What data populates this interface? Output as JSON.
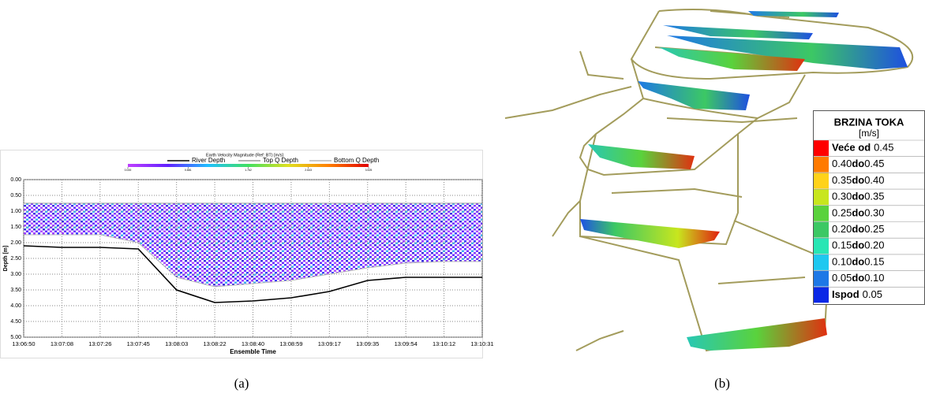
{
  "panel_a": {
    "chart_data": {
      "type": "line",
      "title": "Earth Velocity Magnitude (Ref: BT) [m/s]",
      "x_label": "Ensemble Time",
      "y_label": "Depth [m]",
      "categories": [
        "13:06:50",
        "13:07:08",
        "13:07:26",
        "13:07:45",
        "13:08:03",
        "13:08:22",
        "13:08:40",
        "13:08:59",
        "13:09:17",
        "13:09:35",
        "13:09:54",
        "13:10:12",
        "13:10:31"
      ],
      "series": [
        {
          "name": "River Depth",
          "color": "#000000",
          "values": [
            2.1,
            2.15,
            2.15,
            2.2,
            3.5,
            3.9,
            3.85,
            3.75,
            3.55,
            3.2,
            3.1,
            3.1,
            3.1
          ]
        },
        {
          "name": "Top Q Depth",
          "color": "#9a9a9a",
          "values": [
            0.75,
            0.75,
            0.75,
            0.75,
            0.75,
            0.75,
            0.75,
            0.75,
            0.75,
            0.75,
            0.75,
            0.75,
            0.75
          ]
        },
        {
          "name": "Bottom Q Depth",
          "color": "#b8b8b8",
          "values": [
            1.75,
            1.75,
            1.75,
            2.0,
            3.1,
            3.4,
            3.3,
            3.2,
            3.0,
            2.8,
            2.65,
            2.6,
            2.6
          ]
        }
      ],
      "ylim": [
        0,
        5
      ],
      "y_reversed": true,
      "yticks": [
        {
          "value": 0,
          "label": "0.00"
        },
        {
          "value": 0.5,
          "label": "0.50"
        },
        {
          "value": 1,
          "label": "1.00"
        },
        {
          "value": 1.5,
          "label": "1.50"
        },
        {
          "value": 2,
          "label": "2.00"
        },
        {
          "value": 2.5,
          "label": "2.50"
        },
        {
          "value": 3,
          "label": "3.00"
        },
        {
          "value": 3.5,
          "label": "3.50"
        },
        {
          "value": 4,
          "label": "4.00"
        },
        {
          "value": 4.5,
          "label": "4.50"
        },
        {
          "value": 5,
          "label": "5.00"
        }
      ],
      "grid": true,
      "colorbar": {
        "colors": [
          "#c040ff",
          "#6020ff",
          "#20c0ff",
          "#40e060",
          "#e0e020",
          "#ff8000",
          "#e00000"
        ],
        "ticks": [
          {
            "value": 0,
            "label": "0.000"
          },
          {
            "value": 0.881,
            "label": "0.881"
          },
          {
            "value": 1.762,
            "label": "1.762"
          },
          {
            "value": 2.643,
            "label": "2.643"
          },
          {
            "value": 3.525,
            "label": "3.525"
          }
        ]
      }
    },
    "caption": "(a)"
  },
  "panel_b": {
    "legend": {
      "title": "BRZINA TOKA",
      "unit": "[m/s]",
      "rows": [
        {
          "color": "#ff0000",
          "parts": [
            "Veće od",
            "0.45"
          ]
        },
        {
          "color": "#ff7a00",
          "parts": [
            "0.40",
            "do",
            "0.45"
          ]
        },
        {
          "color": "#ffd21a",
          "parts": [
            "0.35",
            "do",
            "0.40"
          ]
        },
        {
          "color": "#c8e61e",
          "parts": [
            "0.30",
            "do",
            "0.35"
          ]
        },
        {
          "color": "#5ad23c",
          "parts": [
            "0.25",
            "do",
            "0.30"
          ]
        },
        {
          "color": "#3cc864",
          "parts": [
            "0.20",
            "do",
            "0.25"
          ]
        },
        {
          "color": "#28e6b4",
          "parts": [
            "0.15",
            "do",
            "0.20"
          ]
        },
        {
          "color": "#1ec8f0",
          "parts": [
            "0.10",
            "do",
            "0.15"
          ]
        },
        {
          "color": "#1e78e6",
          "parts": [
            "0.05",
            "do",
            "0.10"
          ]
        },
        {
          "color": "#0a28e6",
          "parts": [
            "Ispod",
            "0.05"
          ]
        }
      ]
    },
    "caption": "(b)"
  }
}
